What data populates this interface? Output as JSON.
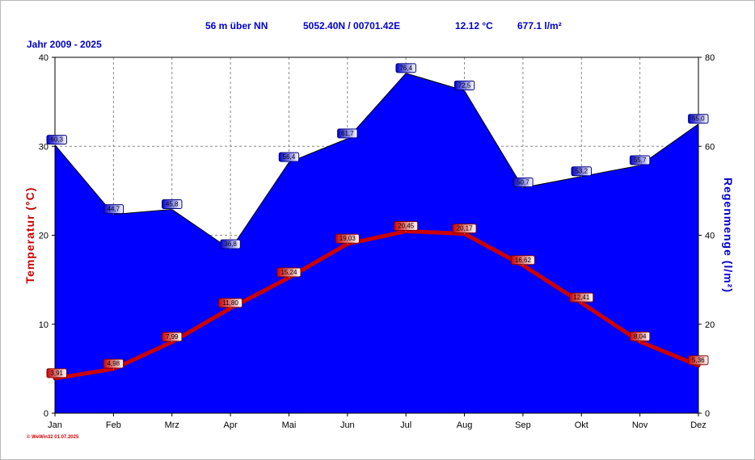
{
  "header": {
    "elevation": "56 m über NN",
    "coordinates": "5052.40N / 00701.42E",
    "mean_temp": "12.12 °C",
    "total_precip": "677.1 l/m²"
  },
  "period": "Jahr  2009 - 2025",
  "copyright": "© WeWin32  01.07.2025",
  "colors": {
    "precip_fill": "#0000ff",
    "temp_line": "#cc0000",
    "label_blue": "#0000cc",
    "label_red": "#cc0000"
  },
  "chart_data": {
    "type": "area",
    "categories": [
      "Jan",
      "Feb",
      "Mrz",
      "Apr",
      "Mai",
      "Jun",
      "Jul",
      "Aug",
      "Sep",
      "Okt",
      "Nov",
      "Dez"
    ],
    "series": [
      {
        "axis": "right",
        "type": "area",
        "values": [
          60.3,
          44.7,
          45.8,
          36.8,
          56.4,
          61.7,
          76.4,
          72.5,
          50.7,
          53.2,
          55.7,
          65.0
        ],
        "labels": [
          "60,3",
          "44,7",
          "45,8",
          "36,8",
          "56,4",
          "61,7",
          "76,4",
          "72,5",
          "50,7",
          "53,2",
          "55,7",
          "65,0"
        ]
      },
      {
        "axis": "left",
        "type": "line",
        "values": [
          3.91,
          4.98,
          7.99,
          11.8,
          15.24,
          19.03,
          20.45,
          20.17,
          16.62,
          12.41,
          8.04,
          5.36
        ],
        "labels": [
          "3,91",
          "4,98",
          "7,99",
          "11,80",
          "15,24",
          "19,03",
          "20,45",
          "20,17",
          "16,62",
          "12,41",
          "8,04",
          "5,36"
        ]
      }
    ],
    "ylabel": "Temperatur  (°C)",
    "ylabel_right": "Regenmenge  (l/m²)",
    "ylim": [
      0,
      40
    ],
    "ylim_right": [
      0,
      80
    ],
    "yticks": [
      "0",
      "10",
      "20",
      "30",
      "40"
    ],
    "yticks_right": [
      "0",
      "20",
      "40",
      "60",
      "80"
    ],
    "grid": true
  }
}
